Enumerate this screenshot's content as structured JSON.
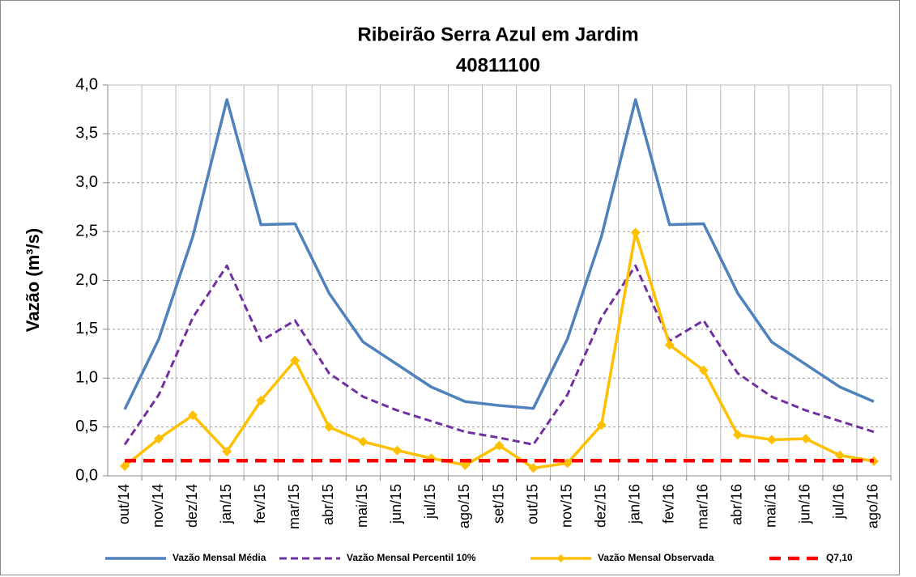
{
  "chart_data": {
    "type": "line",
    "title": "Ribeirão Serra Azul em Jardim",
    "subtitle": "40811100",
    "y_label": "Vazão (m³/s)",
    "categories": [
      "out/14",
      "nov/14",
      "dez/14",
      "jan/15",
      "fev/15",
      "mar/15",
      "abr/15",
      "mai/15",
      "jun/15",
      "jul/15",
      "ago/15",
      "set/15",
      "out/15",
      "nov/15",
      "dez/15",
      "jan/16",
      "fev/16",
      "mar/16",
      "abr/16",
      "mai/16",
      "jun/16",
      "jul/16",
      "ago/16"
    ],
    "series": [
      {
        "name": "Vazão Mensal Média",
        "color": "#4f81bd",
        "style": "solid",
        "values": [
          0.68,
          1.4,
          2.45,
          3.85,
          2.57,
          2.58,
          1.87,
          1.37,
          1.14,
          0.91,
          0.76,
          0.72,
          0.69,
          1.4,
          2.45,
          3.85,
          2.57,
          2.58,
          1.87,
          1.37,
          1.14,
          0.91,
          0.76
        ]
      },
      {
        "name": "Vazão Mensal Percentil 10%",
        "color": "#7030a0",
        "style": "dashed",
        "values": [
          0.32,
          0.83,
          1.62,
          2.15,
          1.38,
          1.59,
          1.05,
          0.81,
          0.67,
          0.56,
          0.45,
          0.39,
          0.32,
          0.83,
          1.62,
          2.15,
          1.38,
          1.59,
          1.05,
          0.81,
          0.67,
          0.56,
          0.45
        ]
      },
      {
        "name": "Vazão Mensal Observada",
        "color": "#ffc000",
        "style": "markers",
        "values": [
          0.1,
          0.38,
          0.62,
          0.25,
          0.77,
          1.18,
          0.5,
          0.35,
          0.26,
          0.18,
          0.11,
          0.31,
          0.08,
          0.13,
          0.52,
          2.49,
          1.34,
          1.08,
          0.42,
          0.37,
          0.38,
          0.21,
          0.15
        ]
      },
      {
        "name": "Q7,10",
        "color": "#ff0000",
        "style": "bigdash",
        "values": [
          0.155,
          0.155,
          0.155,
          0.155,
          0.155,
          0.155,
          0.155,
          0.155,
          0.155,
          0.155,
          0.155,
          0.155,
          0.155,
          0.155,
          0.155,
          0.155,
          0.155,
          0.155,
          0.155,
          0.155,
          0.155,
          0.155,
          0.155
        ]
      }
    ],
    "ylim": [
      0,
      4
    ],
    "yticks": [
      {
        "value": 0,
        "label": "0,0"
      },
      {
        "value": 0.5,
        "label": "0,5"
      },
      {
        "value": 1,
        "label": "1,0"
      },
      {
        "value": 1.5,
        "label": "1,5"
      },
      {
        "value": 2,
        "label": "2,0"
      },
      {
        "value": 2.5,
        "label": "2,5"
      },
      {
        "value": 3,
        "label": "3,0"
      },
      {
        "value": 3.5,
        "label": "3,5"
      },
      {
        "value": 4,
        "label": "4,0"
      }
    ],
    "grid": true,
    "legend": "bottom"
  }
}
